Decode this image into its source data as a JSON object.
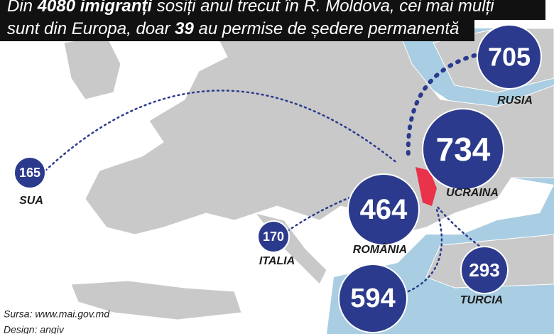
{
  "header": {
    "line1": [
      "Din ",
      "4080 imigranți",
      " sosiți anul trecut în R. Moldova, cei mai mulți"
    ],
    "line2": [
      "sunt din Europa, doar ",
      "39",
      " au permise de ședere permanentă"
    ]
  },
  "bubbles": [
    {
      "value": "705",
      "label": "RUSIA"
    },
    {
      "value": "734",
      "label": "UCRAINA"
    },
    {
      "value": "464",
      "label": "ROMÂNIA"
    },
    {
      "value": "165",
      "label": "SUA"
    },
    {
      "value": "170",
      "label": "ITALIA"
    },
    {
      "value": "293",
      "label": "TURCIA"
    },
    {
      "value": "594"
    }
  ],
  "source": "Sursa: www.mai.gov.md",
  "design": "Design: angiv"
}
